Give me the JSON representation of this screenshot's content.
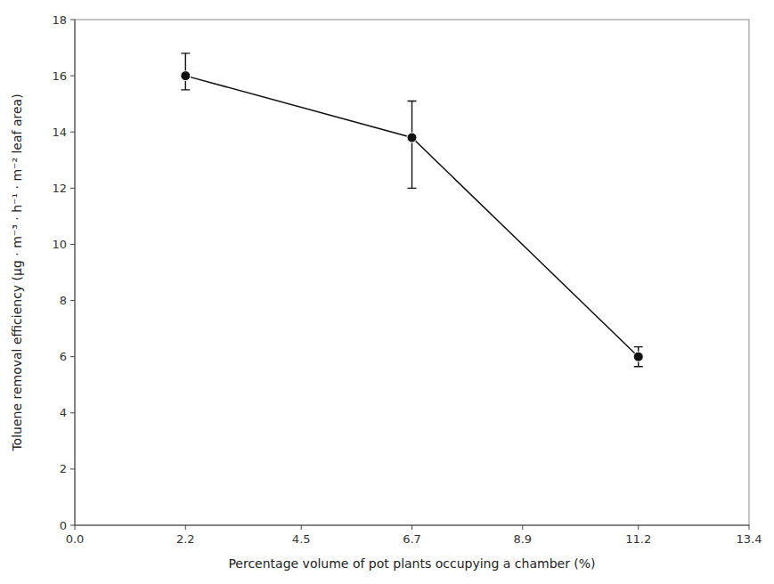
{
  "chart_data": {
    "type": "line",
    "xlabel": "Percentage volume of pot plants occupying a chamber (%)",
    "ylabel": "Toluene removal efficiency (μg · m⁻³ · h⁻¹ · m⁻² leaf area)",
    "x": [
      2.2,
      6.7,
      11.2
    ],
    "series": [
      {
        "color": "#111111",
        "marker": "circle",
        "values": [
          16.0,
          13.8,
          6.0
        ],
        "error_lower": [
          0.5,
          1.8,
          0.35
        ],
        "error_upper": [
          0.8,
          1.3,
          0.35
        ]
      }
    ],
    "xlim": [
      0.0,
      13.4
    ],
    "ylim": [
      0,
      18
    ],
    "xticks": [
      {
        "value": 0.0,
        "label": "0.0"
      },
      2.2,
      4.5,
      6.7,
      8.9,
      11.2,
      13.4
    ],
    "yticks": [
      0,
      2,
      4,
      6,
      8,
      10,
      12,
      14,
      16,
      18
    ],
    "grid": false
  }
}
